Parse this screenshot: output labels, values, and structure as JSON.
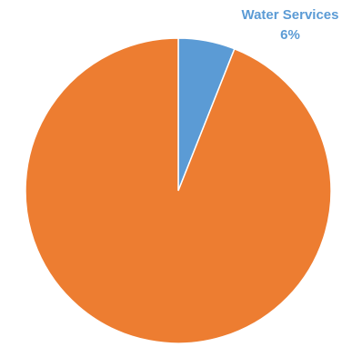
{
  "chart_data": {
    "type": "pie",
    "slices": [
      {
        "name": "Water Services",
        "value": 6,
        "value_label": "6%",
        "color": "#5b9bd5",
        "labeled": true
      },
      {
        "name": "",
        "value": 94,
        "value_label": "",
        "color": "#ed7d31",
        "labeled": false
      }
    ],
    "start_angle_deg": 0,
    "direction": "clockwise",
    "legend": "none"
  }
}
